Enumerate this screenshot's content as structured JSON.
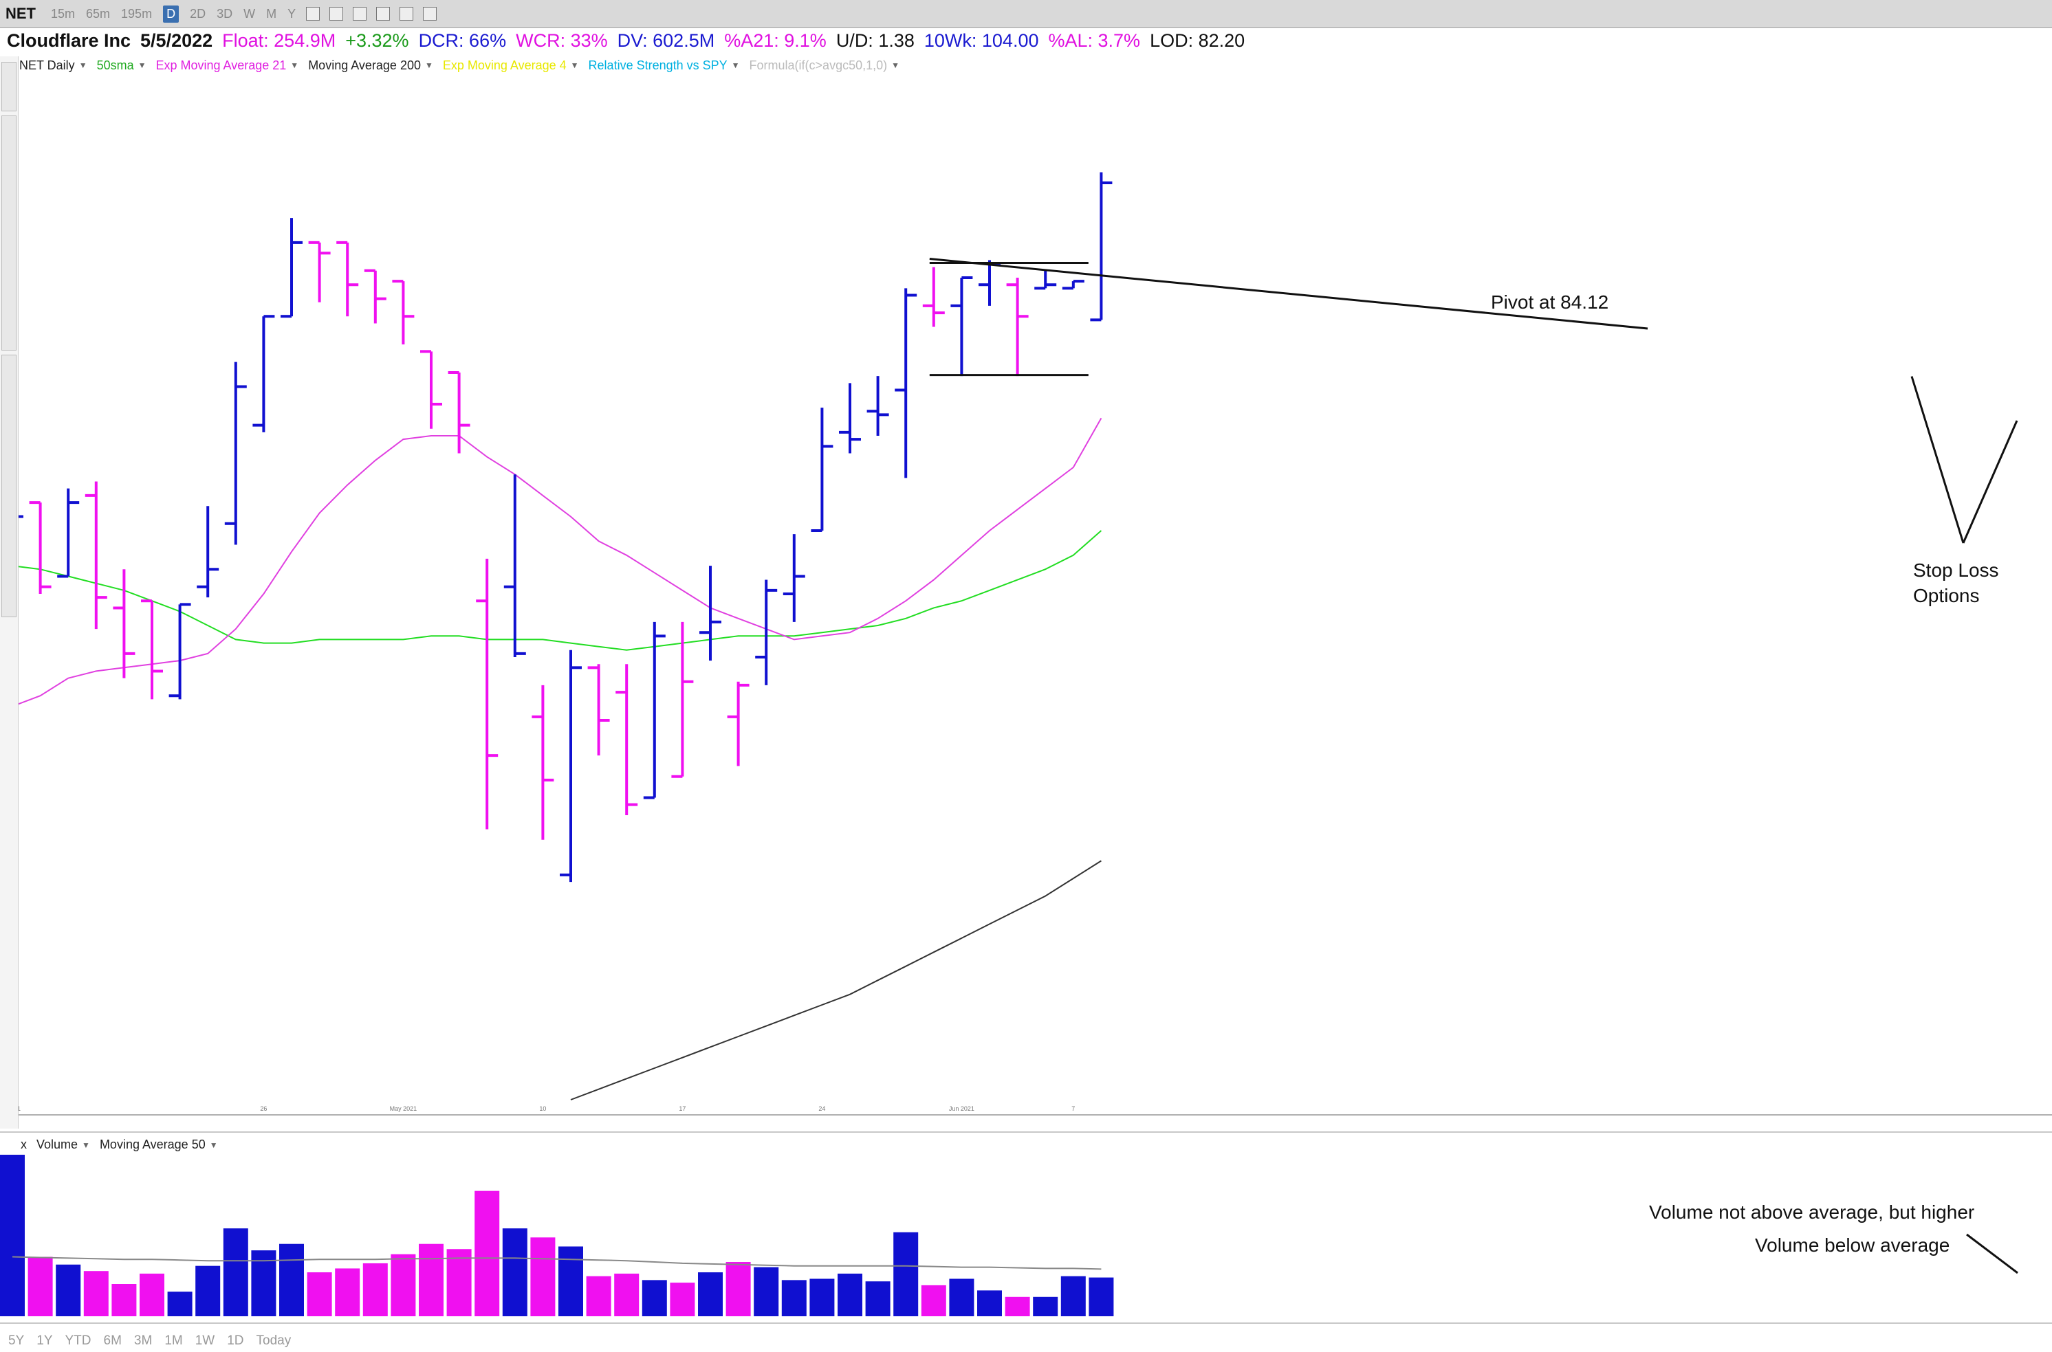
{
  "toolbar": {
    "ticker": "NET",
    "timeframes": [
      "15m",
      "65m",
      "195m",
      "D",
      "2D",
      "3D",
      "W",
      "M",
      "Y"
    ],
    "active_timeframe": "D"
  },
  "info": {
    "company": "Cloudflare Inc",
    "date": "5/5/2022",
    "float": "Float: 254.9M",
    "change": "+3.32%",
    "dcr": "DCR: 66%",
    "wcr": "WCR: 33%",
    "dv": "DV: 602.5M",
    "a21": "%A21: 9.1%",
    "ud": "U/D: 1.38",
    "wk10": "10Wk: 104.00",
    "al": "%AL: 3.7%",
    "lod": "LOD: 82.20"
  },
  "legend": [
    {
      "label": "NET Daily",
      "color": "#222222"
    },
    {
      "label": "50sma",
      "color": "#22aa22"
    },
    {
      "label": "Exp Moving Average 21",
      "color": "#e020e0"
    },
    {
      "label": "Moving Average 200",
      "color": "#222222"
    },
    {
      "label": "Exp Moving Average 4",
      "color": "#e8e800"
    },
    {
      "label": "Relative Strength vs SPY",
      "color": "#00b0e0"
    },
    {
      "label": "Formula(if(c>avgc50,1,0)",
      "color": "#bbbbbb"
    }
  ],
  "volume_header": {
    "close": "x",
    "label": "Volume",
    "ma": "Moving Average 50"
  },
  "ranges": [
    "5Y",
    "1Y",
    "YTD",
    "6M",
    "3M",
    "1M",
    "1W",
    "1D",
    "Today"
  ],
  "annotations": {
    "pivot": "Pivot at 84.12",
    "stop_loss": [
      "Stop Loss",
      "Options"
    ],
    "vol_higher": "Volume not above average, but higher",
    "vol_below": "Volume below average"
  },
  "chart_data": {
    "type": "ohlc",
    "price_range": [
      58.8,
      88.5
    ],
    "x_ticks": [
      {
        "index": 0,
        "label": "Jul 21"
      },
      {
        "index": 9,
        "label": "26"
      },
      {
        "index": 14,
        "label": "May 2021"
      },
      {
        "index": 19,
        "label": "10"
      },
      {
        "index": 24,
        "label": "17"
      },
      {
        "index": 29,
        "label": "24"
      },
      {
        "index": 34,
        "label": "Jun 2021"
      },
      {
        "index": 38,
        "label": "7"
      }
    ],
    "colors": {
      "up": "#1010d0",
      "down": "#f010f0",
      "sma50": "#22dd22",
      "ema21": "#e040e0",
      "ma200": "#333333",
      "volume_ma": "#888888"
    },
    "bars": [
      {
        "o": 74.0,
        "h": 76.7,
        "l": 69.5,
        "c": 75.4,
        "dir": "up"
      },
      {
        "o": 75.8,
        "h": 75.8,
        "l": 73.2,
        "c": 73.4,
        "dir": "down"
      },
      {
        "o": 73.7,
        "h": 76.2,
        "l": 73.7,
        "c": 75.8,
        "dir": "up"
      },
      {
        "o": 76.0,
        "h": 76.4,
        "l": 72.2,
        "c": 73.1,
        "dir": "down"
      },
      {
        "o": 72.8,
        "h": 73.9,
        "l": 70.8,
        "c": 71.5,
        "dir": "down"
      },
      {
        "o": 73.0,
        "h": 73.0,
        "l": 70.2,
        "c": 71.0,
        "dir": "down"
      },
      {
        "o": 70.3,
        "h": 72.9,
        "l": 70.2,
        "c": 72.9,
        "dir": "up"
      },
      {
        "o": 73.4,
        "h": 75.7,
        "l": 73.1,
        "c": 73.9,
        "dir": "up"
      },
      {
        "o": 75.2,
        "h": 79.8,
        "l": 74.6,
        "c": 79.1,
        "dir": "up"
      },
      {
        "o": 78.0,
        "h": 81.1,
        "l": 77.8,
        "c": 81.1,
        "dir": "up"
      },
      {
        "o": 81.1,
        "h": 83.9,
        "l": 81.1,
        "c": 83.2,
        "dir": "up"
      },
      {
        "o": 83.2,
        "h": 83.2,
        "l": 81.5,
        "c": 82.9,
        "dir": "down"
      },
      {
        "o": 83.2,
        "h": 83.2,
        "l": 81.1,
        "c": 82.0,
        "dir": "down"
      },
      {
        "o": 82.4,
        "h": 82.4,
        "l": 80.9,
        "c": 81.6,
        "dir": "down"
      },
      {
        "o": 82.1,
        "h": 82.1,
        "l": 80.3,
        "c": 81.1,
        "dir": "down"
      },
      {
        "o": 80.1,
        "h": 80.1,
        "l": 77.9,
        "c": 78.6,
        "dir": "down"
      },
      {
        "o": 79.5,
        "h": 79.5,
        "l": 77.2,
        "c": 78.0,
        "dir": "down"
      },
      {
        "o": 73.0,
        "h": 74.2,
        "l": 66.5,
        "c": 68.6,
        "dir": "down"
      },
      {
        "o": 73.4,
        "h": 76.6,
        "l": 71.4,
        "c": 71.5,
        "dir": "up"
      },
      {
        "o": 69.7,
        "h": 70.6,
        "l": 66.2,
        "c": 67.9,
        "dir": "down"
      },
      {
        "o": 65.2,
        "h": 71.6,
        "l": 65.0,
        "c": 71.1,
        "dir": "up"
      },
      {
        "o": 71.1,
        "h": 71.2,
        "l": 68.6,
        "c": 69.6,
        "dir": "down"
      },
      {
        "o": 70.4,
        "h": 71.2,
        "l": 66.9,
        "c": 67.2,
        "dir": "down"
      },
      {
        "o": 67.4,
        "h": 72.4,
        "l": 67.4,
        "c": 72.0,
        "dir": "up"
      },
      {
        "o": 68.0,
        "h": 72.4,
        "l": 68.0,
        "c": 70.7,
        "dir": "down"
      },
      {
        "o": 72.1,
        "h": 74.0,
        "l": 71.3,
        "c": 72.4,
        "dir": "up"
      },
      {
        "o": 69.7,
        "h": 70.7,
        "l": 68.3,
        "c": 70.6,
        "dir": "down"
      },
      {
        "o": 71.4,
        "h": 73.6,
        "l": 70.6,
        "c": 73.3,
        "dir": "up"
      },
      {
        "o": 73.2,
        "h": 74.9,
        "l": 72.4,
        "c": 73.7,
        "dir": "up"
      },
      {
        "o": 75.0,
        "h": 78.5,
        "l": 75.0,
        "c": 77.4,
        "dir": "up"
      },
      {
        "o": 77.8,
        "h": 79.2,
        "l": 77.2,
        "c": 77.6,
        "dir": "up"
      },
      {
        "o": 78.4,
        "h": 79.4,
        "l": 77.7,
        "c": 78.3,
        "dir": "up"
      },
      {
        "o": 79.0,
        "h": 81.9,
        "l": 76.5,
        "c": 81.7,
        "dir": "up"
      },
      {
        "o": 81.4,
        "h": 82.5,
        "l": 80.8,
        "c": 81.2,
        "dir": "down"
      },
      {
        "o": 81.4,
        "h": 82.2,
        "l": 79.4,
        "c": 82.2,
        "dir": "up"
      },
      {
        "o": 82.0,
        "h": 82.7,
        "l": 81.4,
        "c": 82.6,
        "dir": "up"
      },
      {
        "o": 82.0,
        "h": 82.2,
        "l": 79.4,
        "c": 81.1,
        "dir": "down"
      },
      {
        "o": 81.9,
        "h": 82.4,
        "l": 81.9,
        "c": 82.0,
        "dir": "up"
      },
      {
        "o": 81.9,
        "h": 82.1,
        "l": 81.9,
        "c": 82.1,
        "dir": "up"
      },
      {
        "o": 81.0,
        "h": 85.2,
        "l": 81.0,
        "c": 84.9,
        "dir": "up"
      }
    ],
    "sma50": [
      74.0,
      73.9,
      73.7,
      73.5,
      73.3,
      73.0,
      72.7,
      72.3,
      71.9,
      71.8,
      71.8,
      71.9,
      71.9,
      71.9,
      71.9,
      72.0,
      72.0,
      71.9,
      71.9,
      71.9,
      71.8,
      71.7,
      71.6,
      71.7,
      71.8,
      71.9,
      72.0,
      72.0,
      72.0,
      72.1,
      72.2,
      72.3,
      72.5,
      72.8,
      73.0,
      73.3,
      73.6,
      73.9,
      74.3,
      75.0
    ],
    "ema21": [
      70.0,
      70.3,
      70.8,
      71.0,
      71.1,
      71.2,
      71.3,
      71.5,
      72.2,
      73.2,
      74.4,
      75.5,
      76.3,
      77.0,
      77.6,
      77.7,
      77.7,
      77.1,
      76.6,
      76.0,
      75.4,
      74.7,
      74.3,
      73.8,
      73.3,
      72.8,
      72.5,
      72.2,
      71.9,
      72.0,
      72.1,
      72.5,
      73.0,
      73.6,
      74.3,
      75.0,
      75.6,
      76.2,
      76.8,
      78.2
    ],
    "ma200": [
      null,
      null,
      null,
      null,
      null,
      null,
      null,
      null,
      null,
      null,
      null,
      null,
      null,
      null,
      null,
      null,
      null,
      null,
      null,
      null,
      58.8,
      59.1,
      59.4,
      59.7,
      60.0,
      60.3,
      60.6,
      60.9,
      61.2,
      61.5,
      61.8,
      62.2,
      62.6,
      63.0,
      63.4,
      63.8,
      64.2,
      64.6,
      65.1,
      65.6
    ],
    "pivot": 84.12,
    "range_box": {
      "start_index": 33,
      "end_index": 38,
      "top": 82.62,
      "bottom": 79.43
    },
    "volume": [
      12.5,
      4.6,
      4.0,
      3.5,
      2.5,
      3.3,
      1.9,
      3.9,
      6.8,
      5.1,
      5.6,
      3.4,
      3.7,
      4.1,
      4.8,
      5.6,
      5.2,
      9.7,
      6.8,
      6.1,
      5.4,
      3.1,
      3.3,
      2.8,
      2.6,
      3.4,
      4.2,
      3.8,
      2.8,
      2.9,
      3.3,
      2.7,
      6.5,
      2.4,
      2.9,
      2.0,
      1.5,
      1.5,
      3.1,
      3.0
    ],
    "volume_ma": [
      4.6,
      4.55,
      4.5,
      4.45,
      4.4,
      4.4,
      4.35,
      4.3,
      4.3,
      4.3,
      4.35,
      4.4,
      4.4,
      4.4,
      4.45,
      4.45,
      4.5,
      4.5,
      4.5,
      4.45,
      4.4,
      4.35,
      4.3,
      4.2,
      4.1,
      4.05,
      4.0,
      3.95,
      3.9,
      3.9,
      3.9,
      3.9,
      3.9,
      3.85,
      3.8,
      3.8,
      3.75,
      3.7,
      3.7,
      3.65
    ],
    "volume_max": 12.5
  }
}
